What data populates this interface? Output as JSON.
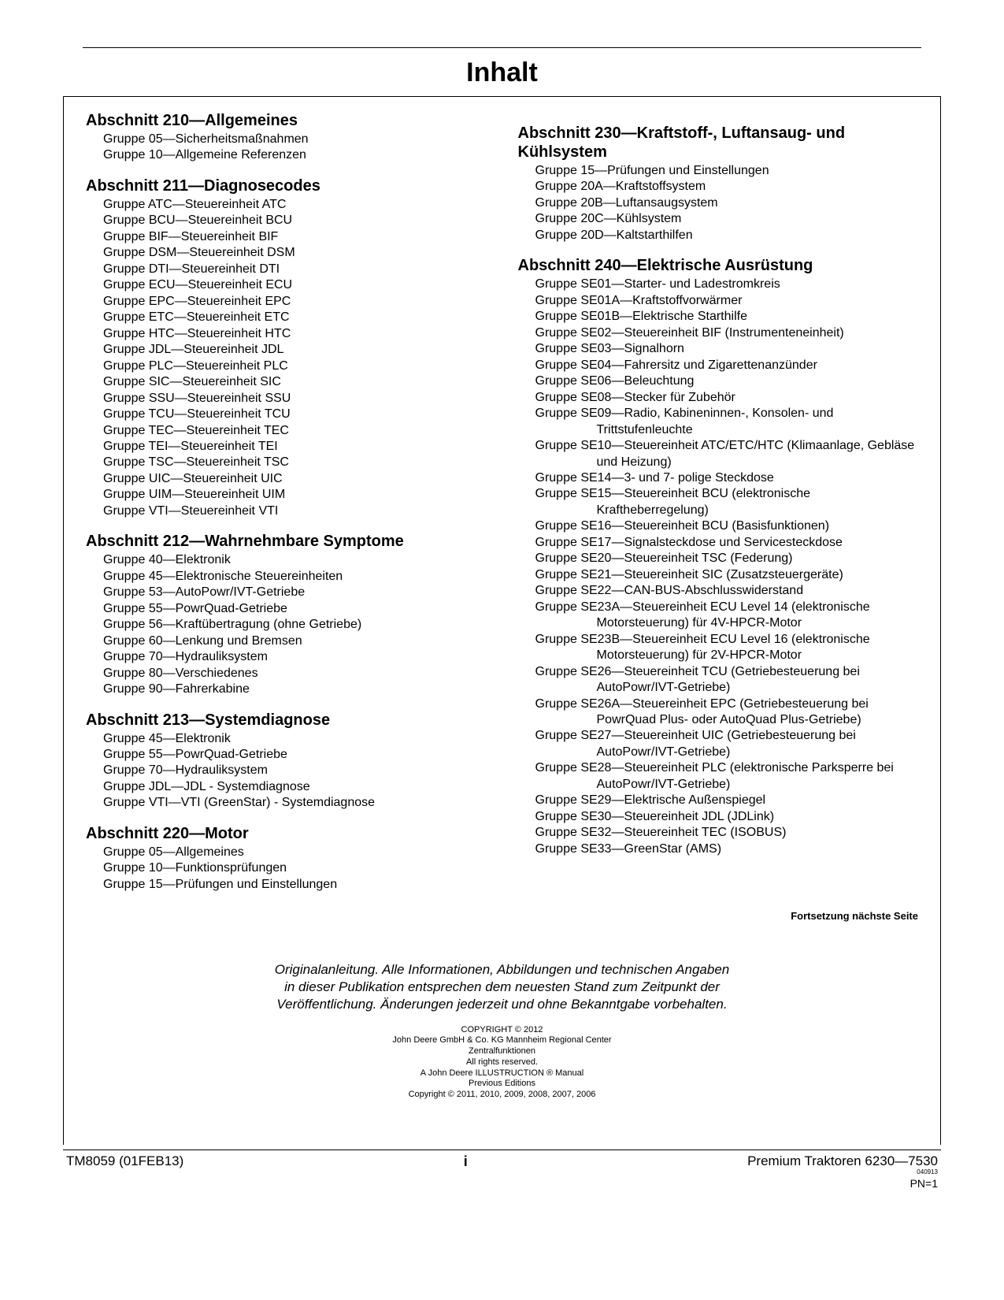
{
  "title": "Inhalt",
  "leftColumn": [
    {
      "heading": "Abschnitt 210—Allgemeines",
      "groups": [
        "Gruppe 05—Sicherheitsmaßnahmen",
        "Gruppe 10—Allgemeine Referenzen"
      ]
    },
    {
      "heading": "Abschnitt 211—Diagnosecodes",
      "groups": [
        "Gruppe ATC—Steuereinheit ATC",
        "Gruppe BCU—Steuereinheit BCU",
        "Gruppe BIF—Steuereinheit BIF",
        "Gruppe DSM—Steuereinheit DSM",
        "Gruppe DTI—Steuereinheit DTI",
        "Gruppe ECU—Steuereinheit ECU",
        "Gruppe EPC—Steuereinheit EPC",
        "Gruppe ETC—Steuereinheit ETC",
        "Gruppe HTC—Steuereinheit HTC",
        "Gruppe JDL—Steuereinheit JDL",
        "Gruppe PLC—Steuereinheit PLC",
        "Gruppe SIC—Steuereinheit SIC",
        "Gruppe SSU—Steuereinheit SSU",
        "Gruppe TCU—Steuereinheit TCU",
        "Gruppe TEC—Steuereinheit TEC",
        "Gruppe TEI—Steuereinheit TEI",
        "Gruppe TSC—Steuereinheit TSC",
        "Gruppe UIC—Steuereinheit UIC",
        "Gruppe UIM—Steuereinheit UIM",
        "Gruppe VTI—Steuereinheit VTI"
      ]
    },
    {
      "heading": "Abschnitt 212—Wahrnehmbare Symptome",
      "groups": [
        "Gruppe 40—Elektronik",
        "Gruppe 45—Elektronische Steuereinheiten",
        "Gruppe 53—AutoPowr/IVT-Getriebe",
        "Gruppe 55—PowrQuad-Getriebe",
        "Gruppe 56—Kraftübertragung (ohne Getriebe)",
        "Gruppe 60—Lenkung und Bremsen",
        "Gruppe 70—Hydrauliksystem",
        "Gruppe 80—Verschiedenes",
        "Gruppe 90—Fahrerkabine"
      ]
    },
    {
      "heading": "Abschnitt 213—Systemdiagnose",
      "groups": [
        "Gruppe 45—Elektronik",
        "Gruppe 55—PowrQuad-Getriebe",
        "Gruppe 70—Hydrauliksystem",
        "Gruppe JDL—JDL - Systemdiagnose",
        "Gruppe VTI—VTI (GreenStar) - Systemdiagnose"
      ]
    },
    {
      "heading": "Abschnitt 220—Motor",
      "groups": [
        "Gruppe 05—Allgemeines",
        "Gruppe 10—Funktionsprüfungen",
        "Gruppe 15—Prüfungen und Einstellungen"
      ]
    }
  ],
  "rightColumn": [
    {
      "heading": "Abschnitt 230—Kraftstoff-, Luftansaug- und Kühlsystem",
      "groups": [
        "Gruppe 15—Prüfungen und Einstellungen",
        "Gruppe 20A—Kraftstoffsystem",
        "Gruppe 20B—Luftansaugsystem",
        "Gruppe 20C—Kühlsystem",
        "Gruppe 20D—Kaltstarthilfen"
      ]
    },
    {
      "heading": "Abschnitt 240—Elektrische Ausrüstung",
      "groups": [
        "Gruppe SE01—Starter- und Ladestromkreis",
        "Gruppe SE01A—Kraftstoffvorwärmer",
        "Gruppe SE01B—Elektrische Starthilfe",
        "Gruppe SE02—Steuereinheit BIF (Instrumenteneinheit)",
        "Gruppe SE03—Signalhorn",
        "Gruppe SE04—Fahrersitz und Zigarettenanzünder",
        "Gruppe SE06—Beleuchtung",
        "Gruppe SE08—Stecker für Zubehör",
        "Gruppe SE09—Radio, Kabineninnen-, Konsolen- und Trittstufenleuchte",
        "Gruppe SE10—Steuereinheit ATC/ETC/HTC (Klimaanlage, Gebläse und Heizung)",
        "Gruppe SE14—3- und 7- polige Steckdose",
        "Gruppe SE15—Steuereinheit BCU (elektronische Kraftheberregelung)",
        "Gruppe SE16—Steuereinheit BCU (Basisfunktionen)",
        "Gruppe SE17—Signalsteckdose und Servicesteckdose",
        "Gruppe SE20—Steuereinheit TSC (Federung)",
        "Gruppe SE21—Steuereinheit SIC (Zusatzsteuergeräte)",
        "Gruppe SE22—CAN-BUS-Abschlusswiderstand",
        "Gruppe SE23A—Steuereinheit ECU Level 14 (elektronische Motorsteuerung) für 4V-HPCR-Motor",
        "Gruppe SE23B—Steuereinheit ECU Level 16 (elektronische Motorsteuerung) für 2V-HPCR-Motor",
        "Gruppe SE26—Steuereinheit TCU (Getriebesteuerung bei AutoPowr/IVT-Getriebe)",
        "Gruppe SE26A—Steuereinheit EPC (Getriebesteuerung bei PowrQuad Plus- oder AutoQuad Plus-Getriebe)",
        "Gruppe SE27—Steuereinheit UIC (Getriebesteuerung bei AutoPowr/IVT-Getriebe)",
        "Gruppe SE28—Steuereinheit PLC (elektronische Parksperre bei AutoPowr/IVT-Getriebe)",
        "Gruppe SE29—Elektrische Außenspiegel",
        "Gruppe SE30—Steuereinheit JDL (JDLink)",
        "Gruppe SE32—Steuereinheit TEC (ISOBUS)",
        "Gruppe SE33—GreenStar (AMS)"
      ]
    }
  ],
  "continueText": "Fortsetzung nächste Seite",
  "disclaimer": [
    "Originalanleitung. Alle Informationen, Abbildungen und technischen Angaben",
    "in dieser Publikation entsprechen dem neuesten Stand zum Zeitpunkt der",
    "Veröffentlichung. Änderungen jederzeit und ohne Bekanntgabe vorbehalten."
  ],
  "copyright": [
    "COPYRIGHT © 2012",
    "John Deere GmbH & Co. KG Mannheim Regional Center",
    "Zentralfunktionen",
    "All rights reserved.",
    "A John Deere ILLUSTRUCTION ® Manual",
    "Previous Editions",
    "Copyright © 2011, 2010, 2009, 2008, 2007, 2006"
  ],
  "footer": {
    "left": "TM8059 (01FEB13)",
    "center": "i",
    "right": "Premium Traktoren 6230—7530",
    "tiny": "040913",
    "pn": "PN=1"
  }
}
